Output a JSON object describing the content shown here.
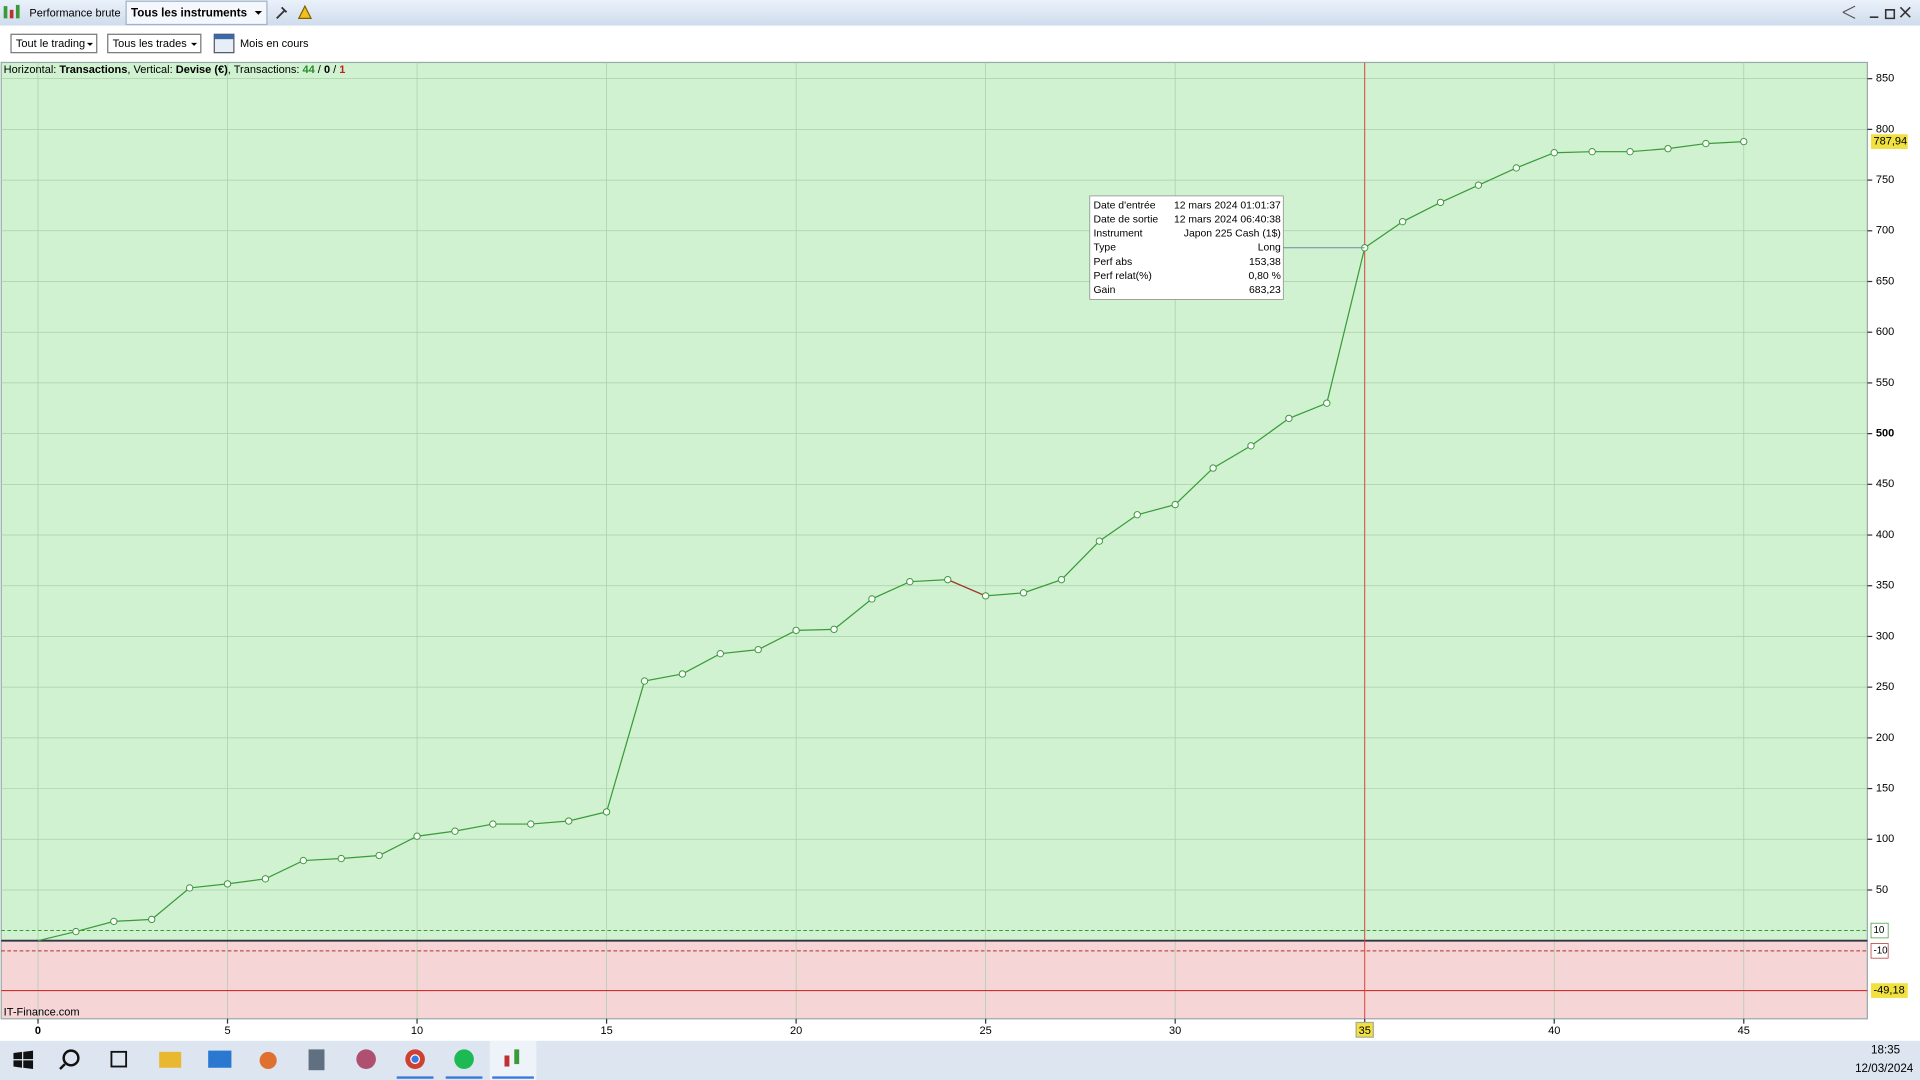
{
  "toolbar": {
    "title": "Performance brute",
    "instrument": "Tous les instruments"
  },
  "filters": {
    "trading": "Tout le trading",
    "trades": "Tous les trades",
    "period": "Mois en cours"
  },
  "info": [
    "Horizontal: ",
    "Transactions",
    ", Vertical: ",
    "Devise (€)",
    ", Transactions: ",
    "44",
    " / ",
    "0",
    " / ",
    "1"
  ],
  "tooltip": {
    "rows": [
      {
        "label": "Date d'entrée",
        "value": "12 mars 2024 01:01:37"
      },
      {
        "label": "Date de sortie",
        "value": "12 mars 2024 06:40:38"
      },
      {
        "label": "Instrument",
        "value": "Japon 225 Cash (1$)"
      },
      {
        "label": "Type",
        "value": "Long"
      },
      {
        "label": "Perf abs",
        "value": "153,38"
      },
      {
        "label": "Perf relat(%)",
        "value": "0,80 %"
      },
      {
        "label": "Gain",
        "value": "683,23"
      }
    ]
  },
  "watermark": "IT-Finance.com",
  "taskbar": {
    "time": "18:35",
    "date": "12/03/2024"
  },
  "chart_data": {
    "type": "line",
    "x": [
      0,
      1,
      2,
      3,
      4,
      5,
      6,
      7,
      8,
      9,
      10,
      11,
      12,
      13,
      14,
      15,
      16,
      17,
      18,
      19,
      20,
      21,
      22,
      23,
      24,
      25,
      26,
      27,
      28,
      29,
      30,
      31,
      32,
      33,
      34,
      35,
      36,
      37,
      38,
      39,
      40,
      41,
      42,
      43,
      44,
      45
    ],
    "series": [
      {
        "name": "Gain",
        "color": "#3a9a3a",
        "loss_color": "#b03030",
        "values": [
          0,
          9,
          19,
          21,
          52,
          56,
          61,
          79,
          81,
          84,
          103,
          108,
          115,
          115,
          118,
          127,
          256,
          263,
          283,
          287,
          306,
          307,
          337,
          354,
          356,
          340,
          343,
          356,
          394,
          420,
          430,
          466,
          488,
          515,
          530,
          683.23,
          709,
          728,
          745,
          762,
          777,
          778,
          778,
          781,
          786,
          787.94
        ]
      }
    ],
    "xlim": [
      -0.97,
      48.26
    ],
    "ylim": [
      -77,
      866
    ],
    "xticks": [
      0,
      5,
      10,
      15,
      20,
      25,
      30,
      35,
      40,
      45
    ],
    "yticks": [
      50,
      100,
      150,
      200,
      250,
      300,
      350,
      400,
      450,
      500,
      550,
      600,
      650,
      700,
      750,
      800,
      850
    ],
    "bold_ytick": 500,
    "crosshair_x": 35,
    "last_value": {
      "value": 787.94,
      "label": "787,94"
    },
    "bands": [
      {
        "value": 10,
        "color": "#3a9a3a"
      },
      {
        "value": -10,
        "color": "#b03030"
      }
    ],
    "drawdown": {
      "value": -49.18,
      "label": "-49,18"
    },
    "grid": true
  }
}
